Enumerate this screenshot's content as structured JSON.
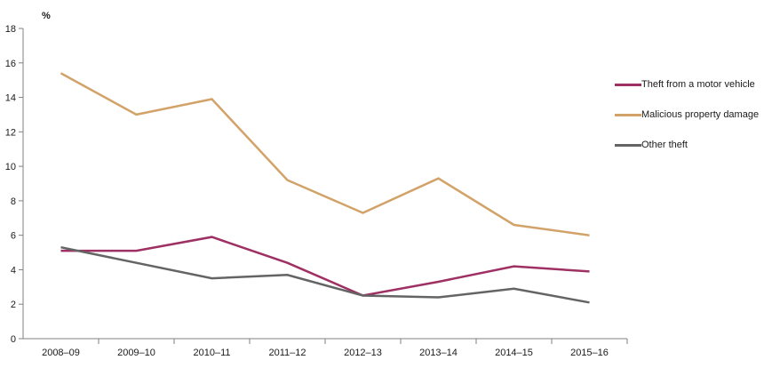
{
  "chart_data": {
    "type": "line",
    "title": "",
    "xlabel": "",
    "ylabel": "%",
    "ylim": [
      0,
      18
    ],
    "yticks": [
      0,
      2,
      4,
      6,
      8,
      10,
      12,
      14,
      16,
      18
    ],
    "grid": false,
    "legend_position": "right",
    "categories": [
      "2008–09",
      "2009–10",
      "2010–11",
      "2011–12",
      "2012–13",
      "2013–14",
      "2014–15",
      "2015–16"
    ],
    "series": [
      {
        "name": "Theft from a motor vehicle",
        "color": "#9e3063",
        "values": [
          5.1,
          5.1,
          5.9,
          4.4,
          2.5,
          3.3,
          4.2,
          3.9
        ]
      },
      {
        "name": "Malicious property damage",
        "color": "#d2a369",
        "values": [
          15.4,
          13.0,
          13.9,
          9.2,
          7.3,
          9.3,
          6.6,
          6.0
        ]
      },
      {
        "name": "Other theft",
        "color": "#646464",
        "values": [
          5.3,
          4.4,
          3.5,
          3.7,
          2.5,
          2.4,
          2.9,
          2.1
        ]
      }
    ],
    "axis_color": "#808080",
    "text_color": "#1a1a1a"
  }
}
